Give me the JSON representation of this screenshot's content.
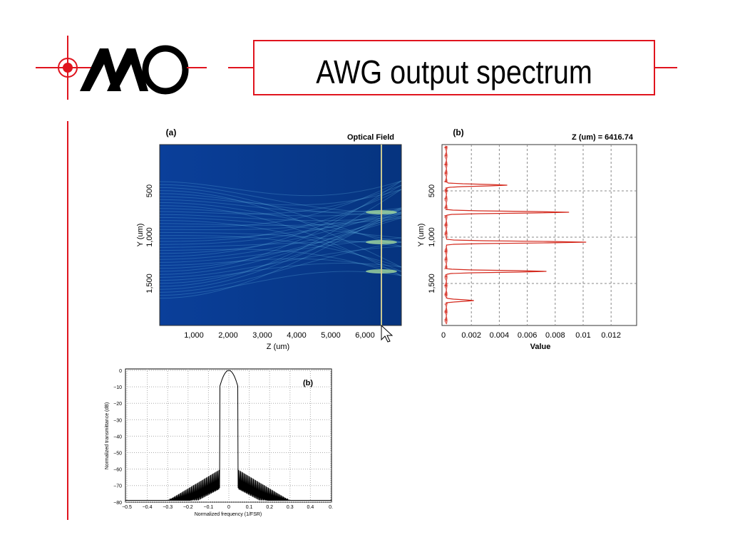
{
  "header": {
    "title": "AWG output spectrum"
  },
  "figures": [
    {
      "label": "(a)",
      "title": "Optical Field",
      "y_label": "Y (um)",
      "y_ticks": [
        "500",
        "1,000",
        "1,500"
      ],
      "x_label": "Z (um)",
      "x_ticks": [
        "1,000",
        "2,000",
        "3,000",
        "4,000",
        "5,000",
        "6,000"
      ]
    },
    {
      "label": "(b)",
      "title": "Z (um)  = 6416.74",
      "y_label": "Y (um)",
      "y_ticks": [
        "500",
        "1,000",
        "1,500"
      ],
      "x_label": "Value",
      "x_ticks": [
        "0",
        "0.002",
        "0.004",
        "0.006",
        "0.008",
        "0.01",
        "0.012"
      ]
    },
    {
      "label": "(b)",
      "y_label": "Normalized transmittance (dB)",
      "y_ticks": [
        "0",
        "−10",
        "−20",
        "−30",
        "−40",
        "−50",
        "−60",
        "−70",
        "−80"
      ],
      "x_label": "Normalized frequency (1/FSR)",
      "x_ticks": [
        "−0.5",
        "−0.4",
        "−0.3",
        "−0.2",
        "−0.1",
        "0",
        "0.1",
        "0.2",
        "0.3",
        "0.4",
        "0."
      ]
    }
  ]
}
